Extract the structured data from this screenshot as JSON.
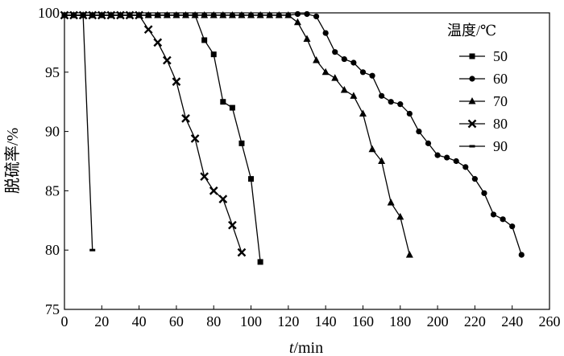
{
  "chart_data": {
    "type": "line",
    "xlabel_italic": "t",
    "xlabel_unit": "/min",
    "ylabel": "脱硫率/%",
    "xlim": [
      0,
      260
    ],
    "ylim": [
      75,
      100
    ],
    "xticks": [
      0,
      20,
      40,
      60,
      80,
      100,
      120,
      140,
      160,
      180,
      200,
      220,
      240,
      260
    ],
    "yticks": [
      75,
      80,
      85,
      90,
      95,
      100
    ],
    "legend": {
      "title": "温度/℃",
      "placement": "top-right"
    },
    "series": [
      {
        "name": "50",
        "marker": "square",
        "points": [
          [
            0,
            99.8
          ],
          [
            5,
            99.8
          ],
          [
            10,
            99.8
          ],
          [
            15,
            99.8
          ],
          [
            20,
            99.8
          ],
          [
            25,
            99.8
          ],
          [
            30,
            99.8
          ],
          [
            35,
            99.8
          ],
          [
            40,
            99.8
          ],
          [
            45,
            99.8
          ],
          [
            50,
            99.8
          ],
          [
            55,
            99.8
          ],
          [
            60,
            99.8
          ],
          [
            65,
            99.8
          ],
          [
            70,
            99.8
          ],
          [
            75,
            97.7
          ],
          [
            80,
            96.5
          ],
          [
            85,
            92.5
          ],
          [
            90,
            92.0
          ],
          [
            95,
            89.0
          ],
          [
            100,
            86.0
          ],
          [
            105,
            79.0
          ]
        ]
      },
      {
        "name": "60",
        "marker": "circle",
        "points": [
          [
            0,
            99.8
          ],
          [
            5,
            99.8
          ],
          [
            10,
            99.8
          ],
          [
            15,
            99.8
          ],
          [
            20,
            99.8
          ],
          [
            25,
            99.8
          ],
          [
            30,
            99.8
          ],
          [
            35,
            99.8
          ],
          [
            40,
            99.8
          ],
          [
            45,
            99.8
          ],
          [
            50,
            99.8
          ],
          [
            55,
            99.8
          ],
          [
            60,
            99.8
          ],
          [
            65,
            99.8
          ],
          [
            70,
            99.8
          ],
          [
            75,
            99.8
          ],
          [
            80,
            99.8
          ],
          [
            85,
            99.8
          ],
          [
            90,
            99.8
          ],
          [
            95,
            99.8
          ],
          [
            100,
            99.8
          ],
          [
            105,
            99.8
          ],
          [
            110,
            99.8
          ],
          [
            115,
            99.8
          ],
          [
            120,
            99.8
          ],
          [
            125,
            99.9
          ],
          [
            130,
            99.9
          ],
          [
            135,
            99.7
          ],
          [
            140,
            98.3
          ],
          [
            145,
            96.7
          ],
          [
            150,
            96.1
          ],
          [
            155,
            95.8
          ],
          [
            160,
            95.0
          ],
          [
            165,
            94.7
          ],
          [
            170,
            93.0
          ],
          [
            175,
            92.5
          ],
          [
            180,
            92.3
          ],
          [
            185,
            91.5
          ],
          [
            190,
            90.0
          ],
          [
            195,
            89.0
          ],
          [
            200,
            88.0
          ],
          [
            205,
            87.8
          ],
          [
            210,
            87.5
          ],
          [
            215,
            87.0
          ],
          [
            220,
            86.0
          ],
          [
            225,
            84.8
          ],
          [
            230,
            83.0
          ],
          [
            235,
            82.6
          ],
          [
            240,
            82.0
          ],
          [
            245,
            79.6
          ]
        ]
      },
      {
        "name": "70",
        "marker": "triangle",
        "points": [
          [
            0,
            99.8
          ],
          [
            5,
            99.8
          ],
          [
            10,
            99.8
          ],
          [
            15,
            99.8
          ],
          [
            20,
            99.8
          ],
          [
            25,
            99.8
          ],
          [
            30,
            99.8
          ],
          [
            35,
            99.8
          ],
          [
            40,
            99.8
          ],
          [
            45,
            99.8
          ],
          [
            50,
            99.8
          ],
          [
            55,
            99.8
          ],
          [
            60,
            99.8
          ],
          [
            65,
            99.8
          ],
          [
            70,
            99.8
          ],
          [
            75,
            99.8
          ],
          [
            80,
            99.8
          ],
          [
            85,
            99.8
          ],
          [
            90,
            99.8
          ],
          [
            95,
            99.8
          ],
          [
            100,
            99.8
          ],
          [
            105,
            99.8
          ],
          [
            110,
            99.8
          ],
          [
            115,
            99.8
          ],
          [
            120,
            99.8
          ],
          [
            125,
            99.2
          ],
          [
            130,
            97.8
          ],
          [
            135,
            96.0
          ],
          [
            140,
            95.0
          ],
          [
            145,
            94.5
          ],
          [
            150,
            93.5
          ],
          [
            155,
            93.0
          ],
          [
            160,
            91.5
          ],
          [
            165,
            88.5
          ],
          [
            170,
            87.5
          ],
          [
            175,
            84.0
          ],
          [
            180,
            82.8
          ],
          [
            185,
            79.6
          ]
        ]
      },
      {
        "name": "80",
        "marker": "x",
        "points": [
          [
            0,
            99.8
          ],
          [
            5,
            99.8
          ],
          [
            10,
            99.8
          ],
          [
            15,
            99.8
          ],
          [
            20,
            99.8
          ],
          [
            25,
            99.8
          ],
          [
            30,
            99.8
          ],
          [
            35,
            99.8
          ],
          [
            40,
            99.8
          ],
          [
            45,
            98.6
          ],
          [
            50,
            97.5
          ],
          [
            55,
            96.0
          ],
          [
            60,
            94.2
          ],
          [
            65,
            91.1
          ],
          [
            70,
            89.4
          ],
          [
            75,
            86.2
          ],
          [
            80,
            85.0
          ],
          [
            85,
            84.3
          ],
          [
            90,
            82.1
          ],
          [
            95,
            79.8
          ]
        ]
      },
      {
        "name": "90",
        "marker": "dash",
        "points": [
          [
            0,
            99.8
          ],
          [
            5,
            99.8
          ],
          [
            10,
            99.8
          ],
          [
            15,
            80.0
          ]
        ]
      }
    ]
  }
}
